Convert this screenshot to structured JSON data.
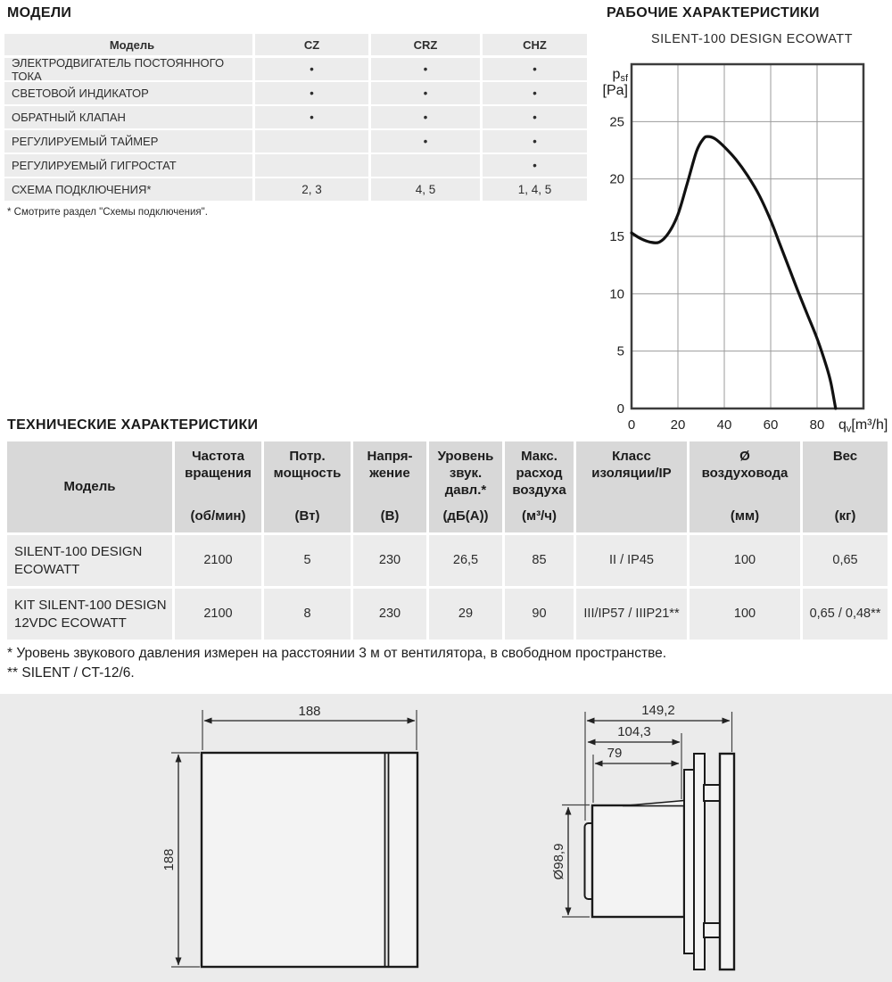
{
  "models_section": {
    "heading": "МОДЕЛИ",
    "table": {
      "header": {
        "feature": "Модель",
        "cols": [
          "CZ",
          "CRZ",
          "CHZ"
        ]
      },
      "rows": [
        {
          "feature": "ЭЛЕКТРОДВИГАТЕЛЬ ПОСТОЯННОГО ТОКА",
          "values": [
            "•",
            "•",
            "•"
          ]
        },
        {
          "feature": "СВЕТОВОЙ ИНДИКАТОР",
          "values": [
            "•",
            "•",
            "•"
          ]
        },
        {
          "feature": "ОБРАТНЫЙ КЛАПАН",
          "values": [
            "•",
            "•",
            "•"
          ]
        },
        {
          "feature": "РЕГУЛИРУЕМЫЙ ТАЙМЕР",
          "values": [
            "",
            "•",
            "•"
          ]
        },
        {
          "feature": "РЕГУЛИРУЕМЫЙ ГИГРОСТАТ",
          "values": [
            "",
            "",
            "•"
          ]
        },
        {
          "feature": "СХЕМА ПОДКЛЮЧЕНИЯ*",
          "values": [
            "2, 3",
            "4, 5",
            "1, 4, 5"
          ]
        }
      ],
      "footnote": "* Смотрите раздел \"Схемы подключения\"."
    }
  },
  "performance_section": {
    "heading": "РАБОЧИЕ ХАРАКТЕРИСТИКИ"
  },
  "chart_data": {
    "type": "line",
    "title": "SILENT-100 DESIGN ECOWATT",
    "xlabel": "qv[m³/h]",
    "ylabel": "psf [Pa]",
    "x_label_main": "q",
    "x_label_sub": "v",
    "x_label_unit": "[m³/h]",
    "y_label_main": "p",
    "y_label_sub": "sf",
    "y_label_unit": "[Pa]",
    "xlim": [
      0,
      100
    ],
    "ylim": [
      0,
      30
    ],
    "x_ticks": [
      0,
      20,
      40,
      60,
      80
    ],
    "y_ticks": [
      0,
      5,
      10,
      15,
      20,
      25
    ],
    "grid": true,
    "legend": "none",
    "series": [
      {
        "name": "SILENT-100 DESIGN ECOWATT",
        "points": [
          [
            0,
            15.3
          ],
          [
            4,
            14.8
          ],
          [
            8,
            14.5
          ],
          [
            12,
            14.5
          ],
          [
            16,
            15.3
          ],
          [
            20,
            16.9
          ],
          [
            24,
            19.6
          ],
          [
            28,
            22.4
          ],
          [
            31,
            23.5
          ],
          [
            33,
            23.7
          ],
          [
            36,
            23.5
          ],
          [
            40,
            22.8
          ],
          [
            45,
            21.7
          ],
          [
            50,
            20.3
          ],
          [
            55,
            18.6
          ],
          [
            60,
            16.4
          ],
          [
            64,
            14.3
          ],
          [
            68,
            12.2
          ],
          [
            72,
            10.1
          ],
          [
            76,
            8.1
          ],
          [
            80,
            6.1
          ],
          [
            84,
            3.7
          ],
          [
            86,
            2.2
          ],
          [
            88,
            0
          ]
        ]
      }
    ]
  },
  "tech_section": {
    "heading": "ТЕХНИЧЕСКИЕ ХАРАКТЕРИСТИКИ",
    "table": {
      "columns": [
        {
          "title": "Модель",
          "unit": ""
        },
        {
          "title": "Частота\nвращения",
          "unit": "(об/мин)"
        },
        {
          "title": "Потр.\nмощность",
          "unit": "(Вт)"
        },
        {
          "title": "Напря-\nжение",
          "unit": "(В)"
        },
        {
          "title": "Уровень\nзвук.\nдавл.*",
          "unit": "(дБ(А))"
        },
        {
          "title": "Макс.\nрасход\nвоздуха",
          "unit": "(м³/ч)"
        },
        {
          "title": "Класс\nизоляции/IP",
          "unit": ""
        },
        {
          "title": "Ø\nвоздуховода",
          "unit": "(мм)"
        },
        {
          "title": "Вес",
          "unit": "(кг)"
        }
      ],
      "rows": [
        {
          "model": "SILENT-100 DESIGN ECOWATT",
          "values": [
            "2100",
            "5",
            "230",
            "26,5",
            "85",
            "II / IP45",
            "100",
            "0,65"
          ]
        },
        {
          "model": "KIT SILENT-100 DESIGN 12VDC ECOWATT",
          "values": [
            "2100",
            "8",
            "230",
            "29",
            "90",
            "III/IP57 / IIIP21**",
            "100",
            "0,65 / 0,48**"
          ]
        }
      ],
      "footnotes": [
        "* Уровень звукового давления измерен на расстоянии 3 м от вентилятора, в свободном пространстве.",
        "** SILENT / CT-12/6."
      ]
    }
  },
  "drawings": {
    "front_view": {
      "width_label": "188",
      "height_label": "188"
    },
    "side_view": {
      "total_depth_label": "149,2",
      "mid_depth_label": "104,3",
      "duct_length_label": "79",
      "duct_diameter_label": "Ø98,9"
    }
  }
}
